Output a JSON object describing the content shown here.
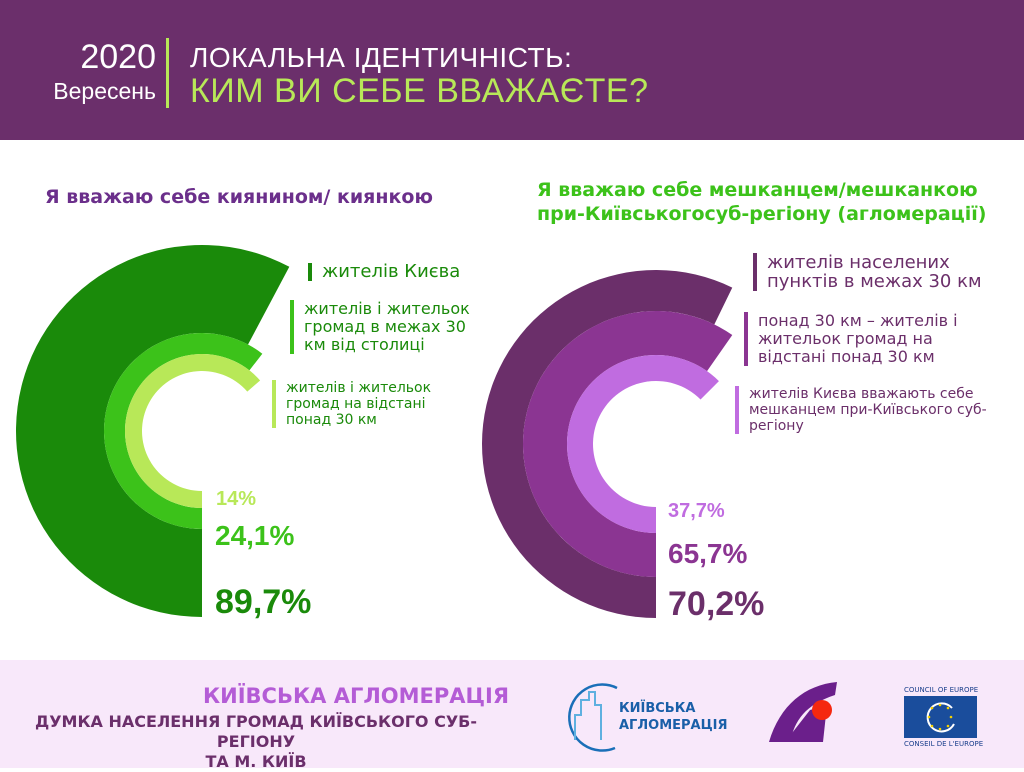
{
  "header": {
    "year": "2020",
    "month": "Вересень",
    "title_line1": "ЛОКАЛЬНА ІДЕНТИЧНІСТЬ:",
    "title_line2": "КИМ ВИ СЕБЕ ВВАЖАЄТЕ?"
  },
  "chart_data": [
    {
      "type": "radial-bar",
      "title": "Я вважаю себе киянином/ киянкою",
      "series": [
        {
          "name": "жителів Києва",
          "value": 89.7,
          "label": "89,7%",
          "color": "#1a8a0a"
        },
        {
          "name": "жителів і жительок громад в межах 30 км від столиці",
          "value": 24.1,
          "label": "24,1%",
          "color": "#3cc21a"
        },
        {
          "name": "жителів і жительок громад на відстані понад 30 км",
          "value": 14,
          "label": "14%",
          "color": "#b8e858"
        }
      ]
    },
    {
      "type": "radial-bar",
      "title": "Я вважаю себе мешканцем/мешканкою при-Київськогосуб-регіону (агломерації)",
      "series": [
        {
          "name": "жителів населених пунктів в межах 30 км",
          "value": 70.2,
          "label": "70,2%",
          "color": "#6b2f6a"
        },
        {
          "name": "понад 30 км – жителів і жительок громад на відстані понад 30 км",
          "value": 65.7,
          "label": "65,7%",
          "color": "#8b3592"
        },
        {
          "name": "жителів Києва вважають себе мешканцем при-Київського суб-регіону",
          "value": 37.7,
          "label": "37,7%",
          "color": "#c06ce0"
        }
      ]
    }
  ],
  "footer": {
    "title": "КИЇВСЬКА АГЛОМЕРАЦІЯ",
    "subtitle_line1": "ДУМКА НАСЕЛЕННЯ ГРОМАД КИЇВСЬКОГО СУБ-РЕГІОНУ",
    "subtitle_line2": "ТА М. КИЇВ",
    "logo1_line1": "КИЇВСЬКА",
    "logo1_line2": "АГЛОМЕРАЦІЯ",
    "coe_top": "COUNCIL OF EUROPE",
    "coe_bottom": "CONSEIL DE L'EUROPE"
  }
}
